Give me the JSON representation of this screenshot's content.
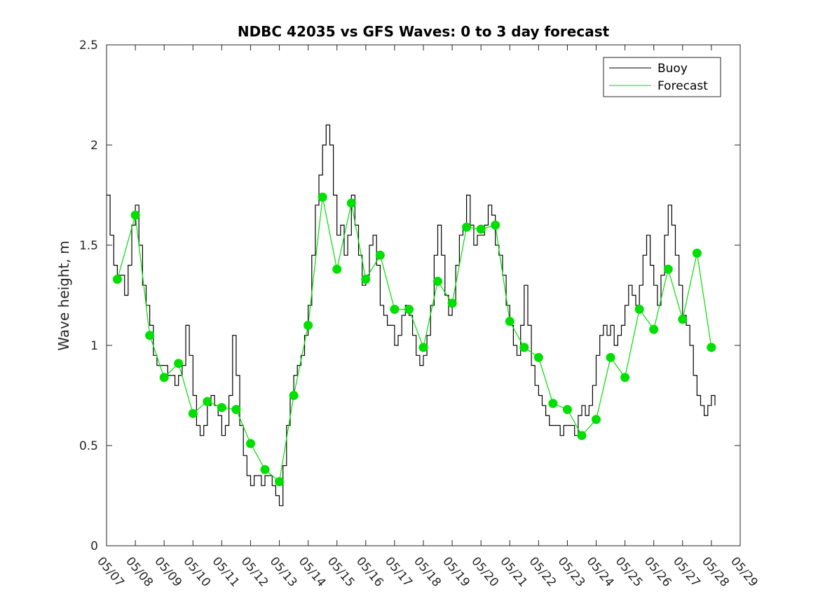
{
  "chart_data": {
    "type": "line",
    "title": "NDBC 42035 vs GFS Waves: 0 to 3 day forecast",
    "xlabel": "",
    "ylabel": "Wave height, m",
    "xlim": [
      "05/07",
      "05/29"
    ],
    "ylim": [
      0,
      2.5
    ],
    "x_tick_labels": [
      "05/07",
      "05/08",
      "05/09",
      "05/10",
      "05/11",
      "05/12",
      "05/13",
      "05/14",
      "05/15",
      "05/16",
      "05/17",
      "05/18",
      "05/19",
      "05/20",
      "05/21",
      "05/22",
      "05/23",
      "05/24",
      "05/25",
      "05/26",
      "05/27",
      "05/28",
      "05/29"
    ],
    "y_ticks": [
      0,
      0.5,
      1,
      1.5,
      2,
      2.5
    ],
    "y_tick_labels": [
      "0",
      "0.5",
      "1",
      "1.5",
      "2",
      "2.5"
    ],
    "legend": {
      "placement": "top-right",
      "entries": [
        {
          "name": "Buoy",
          "color": "#000000"
        },
        {
          "name": "Forecast",
          "color": "#00e000"
        }
      ]
    },
    "grid": false,
    "series": [
      {
        "name": "Buoy",
        "color": "#000000",
        "points": [
          [
            "05/07 00:00",
            1.75
          ],
          [
            "05/07 03:00",
            1.55
          ],
          [
            "05/07 06:00",
            1.4
          ],
          [
            "05/07 09:00",
            1.35
          ],
          [
            "05/07 12:00",
            1.35
          ],
          [
            "05/07 15:00",
            1.25
          ],
          [
            "05/07 18:00",
            1.4
          ],
          [
            "05/07 21:00",
            1.6
          ],
          [
            "05/08 00:00",
            1.7
          ],
          [
            "05/08 03:00",
            1.5
          ],
          [
            "05/08 06:00",
            1.3
          ],
          [
            "05/08 09:00",
            1.2
          ],
          [
            "05/08 12:00",
            1.1
          ],
          [
            "05/08 15:00",
            0.95
          ],
          [
            "05/08 18:00",
            0.9
          ],
          [
            "05/08 21:00",
            0.9
          ],
          [
            "05/09 00:00",
            0.9
          ],
          [
            "05/09 03:00",
            0.85
          ],
          [
            "05/09 06:00",
            0.85
          ],
          [
            "05/09 09:00",
            0.8
          ],
          [
            "05/09 12:00",
            0.85
          ],
          [
            "05/09 15:00",
            0.9
          ],
          [
            "05/09 18:00",
            1.1
          ],
          [
            "05/09 21:00",
            0.95
          ],
          [
            "05/10 00:00",
            0.75
          ],
          [
            "05/10 03:00",
            0.6
          ],
          [
            "05/10 06:00",
            0.55
          ],
          [
            "05/10 09:00",
            0.6
          ],
          [
            "05/10 12:00",
            0.7
          ],
          [
            "05/10 15:00",
            0.75
          ],
          [
            "05/10 18:00",
            0.7
          ],
          [
            "05/10 21:00",
            0.65
          ],
          [
            "05/11 00:00",
            0.55
          ],
          [
            "05/11 03:00",
            0.6
          ],
          [
            "05/11 06:00",
            0.75
          ],
          [
            "05/11 09:00",
            1.05
          ],
          [
            "05/11 12:00",
            0.85
          ],
          [
            "05/11 15:00",
            0.6
          ],
          [
            "05/11 18:00",
            0.45
          ],
          [
            "05/11 21:00",
            0.35
          ],
          [
            "05/12 00:00",
            0.3
          ],
          [
            "05/12 03:00",
            0.35
          ],
          [
            "05/12 06:00",
            0.35
          ],
          [
            "05/12 09:00",
            0.3
          ],
          [
            "05/12 12:00",
            0.35
          ],
          [
            "05/12 15:00",
            0.35
          ],
          [
            "05/12 18:00",
            0.3
          ],
          [
            "05/12 21:00",
            0.25
          ],
          [
            "05/13 00:00",
            0.2
          ],
          [
            "05/13 03:00",
            0.4
          ],
          [
            "05/13 06:00",
            0.6
          ],
          [
            "05/13 09:00",
            0.75
          ],
          [
            "05/13 12:00",
            0.85
          ],
          [
            "05/13 15:00",
            0.9
          ],
          [
            "05/13 18:00",
            0.95
          ],
          [
            "05/13 21:00",
            1.05
          ],
          [
            "05/14 00:00",
            1.2
          ],
          [
            "05/14 03:00",
            1.45
          ],
          [
            "05/14 06:00",
            1.7
          ],
          [
            "05/14 09:00",
            1.85
          ],
          [
            "05/14 12:00",
            2.0
          ],
          [
            "05/14 15:00",
            2.1
          ],
          [
            "05/14 18:00",
            2.0
          ],
          [
            "05/14 21:00",
            1.75
          ],
          [
            "05/15 00:00",
            1.55
          ],
          [
            "05/15 03:00",
            1.6
          ],
          [
            "05/15 06:00",
            1.45
          ],
          [
            "05/15 09:00",
            1.55
          ],
          [
            "05/15 12:00",
            1.75
          ],
          [
            "05/15 15:00",
            1.6
          ],
          [
            "05/15 18:00",
            1.45
          ],
          [
            "05/15 21:00",
            1.3
          ],
          [
            "05/16 00:00",
            1.35
          ],
          [
            "05/16 03:00",
            1.5
          ],
          [
            "05/16 06:00",
            1.55
          ],
          [
            "05/16 09:00",
            1.4
          ],
          [
            "05/16 12:00",
            1.2
          ],
          [
            "05/16 15:00",
            1.15
          ],
          [
            "05/16 18:00",
            1.1
          ],
          [
            "05/16 21:00",
            1.1
          ],
          [
            "05/17 00:00",
            1.0
          ],
          [
            "05/17 03:00",
            1.05
          ],
          [
            "05/17 06:00",
            1.15
          ],
          [
            "05/17 09:00",
            1.2
          ],
          [
            "05/17 12:00",
            1.15
          ],
          [
            "05/17 15:00",
            1.05
          ],
          [
            "05/17 18:00",
            0.95
          ],
          [
            "05/17 21:00",
            0.9
          ],
          [
            "05/18 00:00",
            0.95
          ],
          [
            "05/18 03:00",
            1.05
          ],
          [
            "05/18 06:00",
            1.2
          ],
          [
            "05/18 09:00",
            1.45
          ],
          [
            "05/18 12:00",
            1.6
          ],
          [
            "05/18 15:00",
            1.45
          ],
          [
            "05/18 18:00",
            1.25
          ],
          [
            "05/18 21:00",
            1.15
          ],
          [
            "05/19 00:00",
            1.2
          ],
          [
            "05/19 03:00",
            1.4
          ],
          [
            "05/19 06:00",
            1.55
          ],
          [
            "05/19 09:00",
            1.6
          ],
          [
            "05/19 12:00",
            1.75
          ],
          [
            "05/19 15:00",
            1.6
          ],
          [
            "05/19 18:00",
            1.5
          ],
          [
            "05/19 21:00",
            1.55
          ],
          [
            "05/20 00:00",
            1.55
          ],
          [
            "05/20 03:00",
            1.6
          ],
          [
            "05/20 06:00",
            1.7
          ],
          [
            "05/20 09:00",
            1.65
          ],
          [
            "05/20 12:00",
            1.5
          ],
          [
            "05/20 15:00",
            1.45
          ],
          [
            "05/20 18:00",
            1.35
          ],
          [
            "05/20 21:00",
            1.2
          ],
          [
            "05/21 00:00",
            1.1
          ],
          [
            "05/21 03:00",
            1.0
          ],
          [
            "05/21 06:00",
            0.95
          ],
          [
            "05/21 09:00",
            1.1
          ],
          [
            "05/21 12:00",
            1.3
          ],
          [
            "05/21 15:00",
            1.1
          ],
          [
            "05/21 18:00",
            0.9
          ],
          [
            "05/21 21:00",
            0.8
          ],
          [
            "05/22 00:00",
            0.75
          ],
          [
            "05/22 03:00",
            0.7
          ],
          [
            "05/22 06:00",
            0.65
          ],
          [
            "05/22 09:00",
            0.6
          ],
          [
            "05/22 12:00",
            0.6
          ],
          [
            "05/22 15:00",
            0.6
          ],
          [
            "05/22 18:00",
            0.55
          ],
          [
            "05/22 21:00",
            0.6
          ],
          [
            "05/23 00:00",
            0.6
          ],
          [
            "05/23 03:00",
            0.6
          ],
          [
            "05/23 06:00",
            0.55
          ],
          [
            "05/23 09:00",
            0.65
          ],
          [
            "05/23 12:00",
            0.7
          ],
          [
            "05/23 15:00",
            0.65
          ],
          [
            "05/23 18:00",
            0.7
          ],
          [
            "05/23 21:00",
            0.8
          ],
          [
            "05/24 00:00",
            0.95
          ],
          [
            "05/24 03:00",
            1.05
          ],
          [
            "05/24 06:00",
            1.1
          ],
          [
            "05/24 09:00",
            1.05
          ],
          [
            "05/24 12:00",
            1.1
          ],
          [
            "05/24 15:00",
            1.0
          ],
          [
            "05/24 18:00",
            1.05
          ],
          [
            "05/24 21:00",
            1.1
          ],
          [
            "05/25 00:00",
            1.2
          ],
          [
            "05/25 03:00",
            1.3
          ],
          [
            "05/25 06:00",
            1.25
          ],
          [
            "05/25 09:00",
            1.2
          ],
          [
            "05/25 12:00",
            1.3
          ],
          [
            "05/25 15:00",
            1.45
          ],
          [
            "05/25 18:00",
            1.55
          ],
          [
            "05/25 21:00",
            1.4
          ],
          [
            "05/26 00:00",
            1.3
          ],
          [
            "05/26 03:00",
            1.2
          ],
          [
            "05/26 06:00",
            1.35
          ],
          [
            "05/26 09:00",
            1.55
          ],
          [
            "05/26 12:00",
            1.7
          ],
          [
            "05/26 15:00",
            1.6
          ],
          [
            "05/26 18:00",
            1.45
          ],
          [
            "05/26 21:00",
            1.3
          ],
          [
            "05/27 00:00",
            1.15
          ],
          [
            "05/27 03:00",
            1.1
          ],
          [
            "05/27 06:00",
            1.0
          ],
          [
            "05/27 09:00",
            0.85
          ],
          [
            "05/27 12:00",
            0.75
          ],
          [
            "05/27 15:00",
            0.7
          ],
          [
            "05/27 18:00",
            0.65
          ],
          [
            "05/27 21:00",
            0.7
          ],
          [
            "05/28 00:00",
            0.75
          ],
          [
            "05/28 03:00",
            0.7
          ]
        ]
      },
      {
        "name": "Forecast",
        "color": "#00e000",
        "points": [
          [
            "05/07 09:00",
            1.33
          ],
          [
            "05/08 00:00",
            1.65
          ],
          [
            "05/08 12:00",
            1.05
          ],
          [
            "05/09 00:00",
            0.84
          ],
          [
            "05/09 12:00",
            0.91
          ],
          [
            "05/10 00:00",
            0.66
          ],
          [
            "05/10 12:00",
            0.72
          ],
          [
            "05/11 00:00",
            0.69
          ],
          [
            "05/11 12:00",
            0.68
          ],
          [
            "05/12 00:00",
            0.51
          ],
          [
            "05/12 12:00",
            0.38
          ],
          [
            "05/13 00:00",
            0.32
          ],
          [
            "05/13 12:00",
            0.75
          ],
          [
            "05/14 00:00",
            1.1
          ],
          [
            "05/14 12:00",
            1.74
          ],
          [
            "05/15 00:00",
            1.38
          ],
          [
            "05/15 12:00",
            1.71
          ],
          [
            "05/16 00:00",
            1.33
          ],
          [
            "05/16 12:00",
            1.45
          ],
          [
            "05/17 00:00",
            1.18
          ],
          [
            "05/17 12:00",
            1.18
          ],
          [
            "05/18 00:00",
            0.99
          ],
          [
            "05/18 12:00",
            1.32
          ],
          [
            "05/19 00:00",
            1.21
          ],
          [
            "05/19 12:00",
            1.59
          ],
          [
            "05/20 00:00",
            1.58
          ],
          [
            "05/20 12:00",
            1.6
          ],
          [
            "05/21 00:00",
            1.12
          ],
          [
            "05/21 12:00",
            0.99
          ],
          [
            "05/22 00:00",
            0.94
          ],
          [
            "05/22 12:00",
            0.71
          ],
          [
            "05/23 00:00",
            0.68
          ],
          [
            "05/23 12:00",
            0.55
          ],
          [
            "05/24 00:00",
            0.63
          ],
          [
            "05/24 12:00",
            0.94
          ],
          [
            "05/25 00:00",
            0.84
          ],
          [
            "05/25 12:00",
            1.18
          ],
          [
            "05/26 00:00",
            1.08
          ],
          [
            "05/26 12:00",
            1.38
          ],
          [
            "05/27 00:00",
            1.13
          ],
          [
            "05/27 12:00",
            1.46
          ],
          [
            "05/28 00:00",
            0.99
          ]
        ]
      }
    ]
  }
}
